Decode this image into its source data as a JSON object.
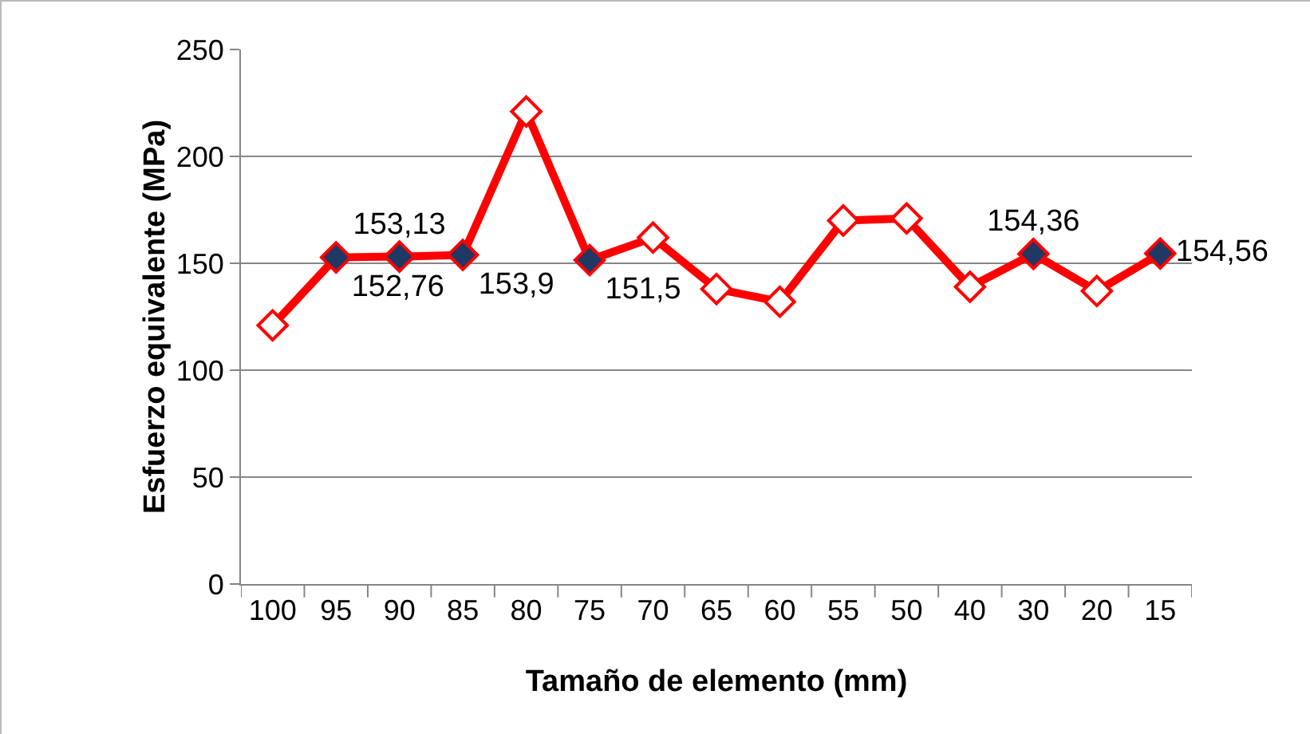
{
  "chart_data": {
    "type": "line",
    "xlabel": "Tamaño de elemento (mm)",
    "ylabel": "Esfuerzo equivalente (MPa)",
    "categories": [
      "100",
      "95",
      "90",
      "85",
      "80",
      "75",
      "70",
      "65",
      "60",
      "55",
      "50",
      "40",
      "30",
      "20",
      "15"
    ],
    "series": [
      {
        "color": "#ff0000",
        "values": [
          121,
          152.76,
          153.13,
          153.9,
          221,
          151.5,
          162,
          138,
          132,
          170,
          171,
          139,
          154.36,
          137,
          154.56
        ],
        "colors": [
          "#ffffff",
          "#1f3864",
          "#1f3864",
          "#1f3864",
          "#ffffff",
          "#1f3864",
          "#ffffff",
          "#ffffff",
          "#ffffff",
          "#ffffff",
          "#ffffff",
          "#ffffff",
          "#1f3864",
          "#ffffff",
          "#1f3864"
        ],
        "value_labels": [
          null,
          "152,76",
          "153,13",
          "153,9",
          null,
          "151,5",
          null,
          null,
          null,
          null,
          null,
          null,
          "154,36",
          null,
          "154,56"
        ]
      }
    ],
    "ylim": [
      0,
      250
    ],
    "yticks": [
      0,
      50,
      100,
      150,
      200,
      250
    ],
    "grid": "y",
    "marker": "diamond",
    "line_style": "solid"
  }
}
